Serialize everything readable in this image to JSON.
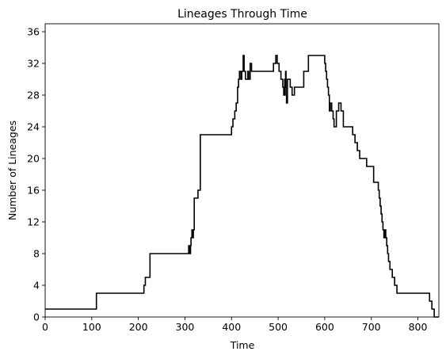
{
  "chart_data": {
    "type": "line",
    "title": "Lineages Through Time",
    "xlabel": "Time",
    "ylabel": "Number of Lineages",
    "xlim": [
      0,
      845
    ],
    "ylim": [
      0,
      37
    ],
    "xticks": [
      "0",
      "100",
      "200",
      "300",
      "400",
      "500",
      "600",
      "700",
      "800"
    ],
    "yticks": [
      "0",
      "4",
      "8",
      "12",
      "16",
      "20",
      "24",
      "28",
      "32",
      "36"
    ],
    "grid": false,
    "line_style": "step",
    "line_color": "#000000",
    "series": [
      {
        "x": [
          0,
          110,
          212,
          215,
          218,
          225,
          308,
          310,
          312,
          313,
          315,
          316,
          318,
          320,
          325,
          328,
          333,
          335,
          400,
          403,
          407,
          410,
          413,
          415,
          417,
          420,
          422,
          425,
          427,
          430,
          435,
          437,
          440,
          443,
          446,
          448,
          450,
          490,
          495,
          498,
          502,
          506,
          510,
          512,
          514,
          515,
          516,
          517,
          518,
          520,
          522,
          526,
          530,
          535,
          540,
          555,
          560,
          565,
          600,
          602,
          604,
          606,
          608,
          610,
          612,
          615,
          618,
          620,
          625,
          630,
          635,
          640,
          655,
          660,
          665,
          670,
          675,
          680,
          690,
          705,
          715,
          717,
          719,
          721,
          723,
          725,
          727,
          729,
          731,
          733,
          735,
          737,
          740,
          745,
          750,
          755,
          760,
          765,
          825,
          830,
          835,
          845
        ],
        "y": [
          1,
          3,
          4,
          5,
          5,
          8,
          9,
          8,
          9,
          10,
          11,
          10,
          11,
          15,
          15,
          16,
          23,
          23,
          24,
          25,
          26,
          27,
          29,
          30,
          31,
          30,
          31,
          33,
          31,
          30,
          31,
          30,
          32,
          31,
          31,
          31,
          31,
          32,
          33,
          32,
          31,
          30,
          29,
          28,
          30,
          29,
          31,
          28,
          27,
          30,
          30,
          29,
          28,
          29,
          29,
          31,
          31,
          33,
          32,
          31,
          30,
          29,
          28,
          26,
          27,
          26,
          25,
          24,
          26,
          27,
          26,
          24,
          24,
          23,
          22,
          21,
          20,
          20,
          19,
          17,
          16,
          15,
          14,
          13,
          12,
          11,
          10,
          11,
          10,
          9,
          8,
          7,
          6,
          5,
          4,
          3,
          3,
          3,
          2,
          1,
          0,
          0
        ]
      }
    ]
  }
}
